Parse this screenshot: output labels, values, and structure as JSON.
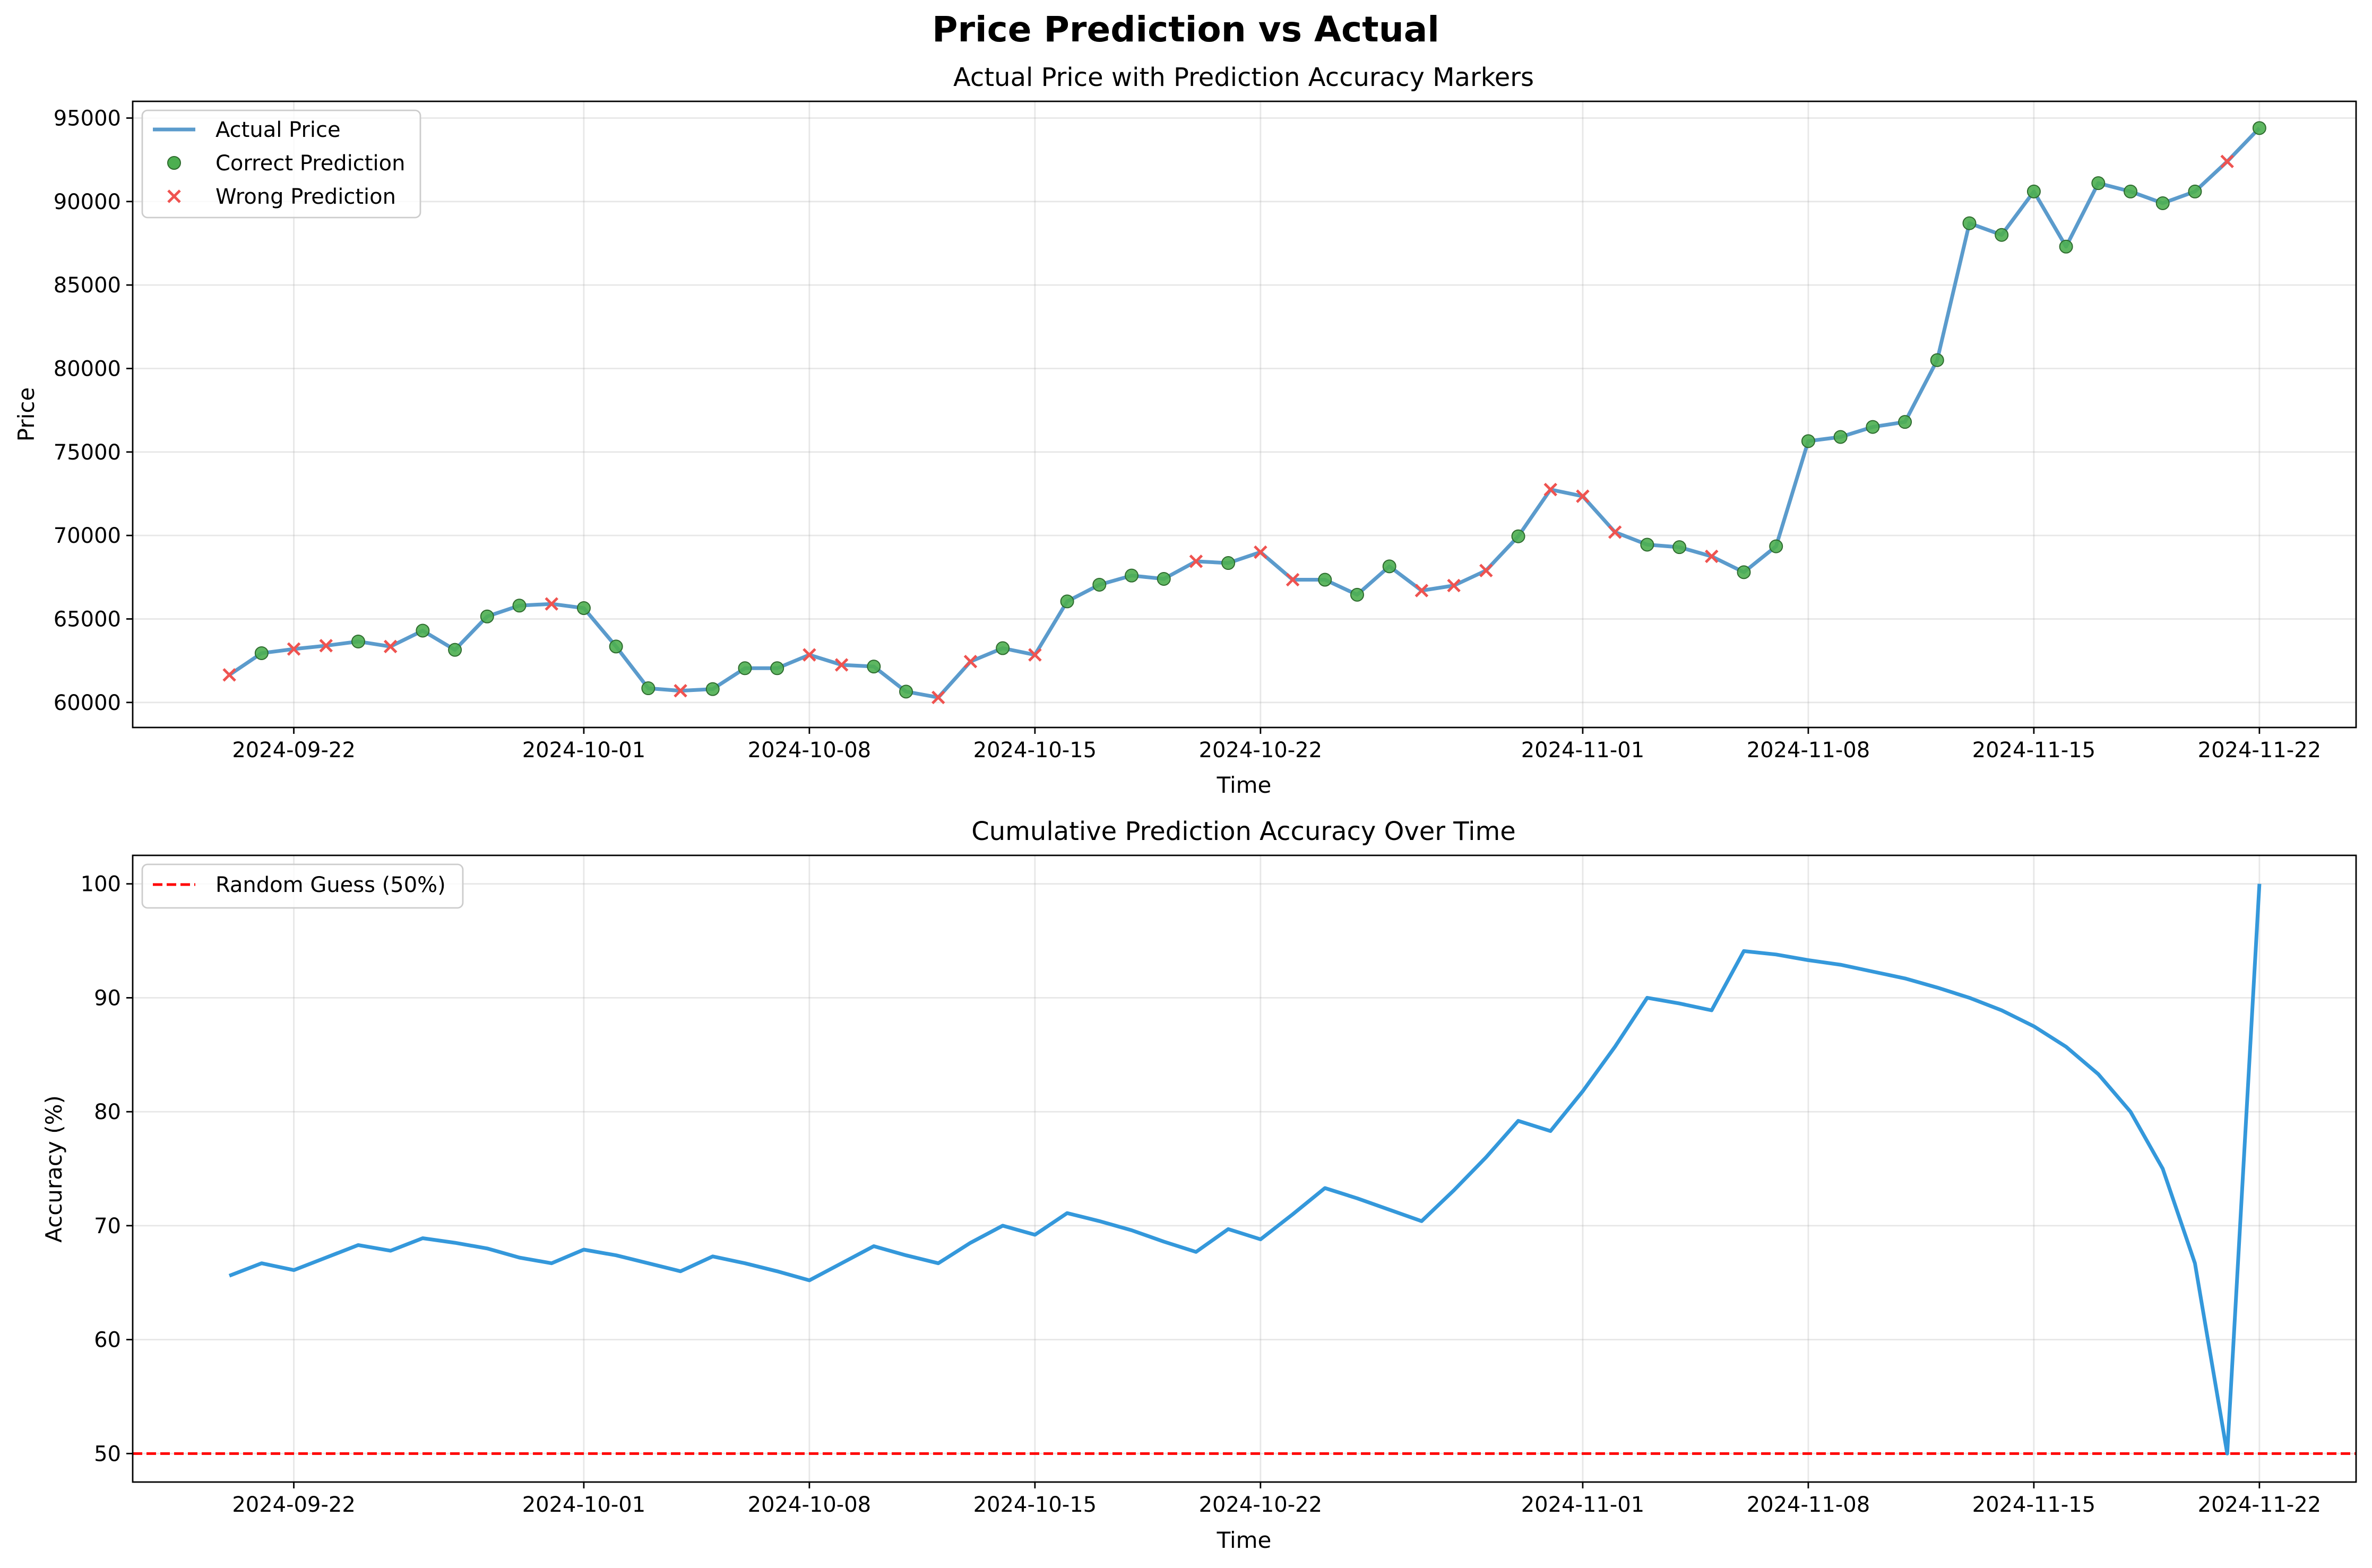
{
  "figure": {
    "suptitle": "Price Prediction vs Actual"
  },
  "chart_data": [
    {
      "type": "line",
      "title": "Actual Price with Prediction Accuracy Markers",
      "xlabel": "Time",
      "ylabel": "Price",
      "x_ticks": [
        "2024-09-22",
        "2024-10-01",
        "2024-10-08",
        "2024-10-15",
        "2024-10-22",
        "2024-11-01",
        "2024-11-08",
        "2024-11-15",
        "2024-11-22"
      ],
      "y_ticks": [
        60000,
        65000,
        70000,
        75000,
        80000,
        85000,
        90000,
        95000
      ],
      "ylim": [
        58500,
        96000
      ],
      "xlim": [
        "2024-09-17",
        "2024-11-25"
      ],
      "grid": true,
      "legend_position": "top-left",
      "legend": [
        "Actual Price",
        "Correct Prediction",
        "Wrong Prediction"
      ],
      "colors": {
        "actual": "#5b9bcc",
        "correct": "#4caf50",
        "correct_edge": "#2e6b2e",
        "wrong": "#ef5350"
      },
      "dates": [
        "2024-09-20",
        "2024-09-21",
        "2024-09-22",
        "2024-09-23",
        "2024-09-24",
        "2024-09-25",
        "2024-09-26",
        "2024-09-27",
        "2024-09-28",
        "2024-09-29",
        "2024-09-30",
        "2024-10-01",
        "2024-10-02",
        "2024-10-03",
        "2024-10-04",
        "2024-10-05",
        "2024-10-06",
        "2024-10-07",
        "2024-10-08",
        "2024-10-09",
        "2024-10-10",
        "2024-10-11",
        "2024-10-12",
        "2024-10-13",
        "2024-10-14",
        "2024-10-15",
        "2024-10-16",
        "2024-10-17",
        "2024-10-18",
        "2024-10-19",
        "2024-10-20",
        "2024-10-21",
        "2024-10-22",
        "2024-10-23",
        "2024-10-24",
        "2024-10-25",
        "2024-10-26",
        "2024-10-27",
        "2024-10-28",
        "2024-10-29",
        "2024-10-30",
        "2024-10-31",
        "2024-11-01",
        "2024-11-02",
        "2024-11-03",
        "2024-11-04",
        "2024-11-05",
        "2024-11-06",
        "2024-11-07",
        "2024-11-08",
        "2024-11-09",
        "2024-11-10",
        "2024-11-11",
        "2024-11-12",
        "2024-11-13",
        "2024-11-14",
        "2024-11-15",
        "2024-11-16",
        "2024-11-17",
        "2024-11-18",
        "2024-11-19",
        "2024-11-20",
        "2024-11-21",
        "2024-11-22"
      ],
      "price": [
        61650,
        62950,
        63200,
        63400,
        63650,
        63350,
        64300,
        63150,
        65150,
        65800,
        65900,
        65650,
        63350,
        60850,
        60700,
        60800,
        62050,
        62050,
        62850,
        62250,
        62150,
        60650,
        60300,
        62450,
        63250,
        62850,
        66050,
        67050,
        67600,
        67400,
        68450,
        68350,
        69000,
        67350,
        67350,
        66450,
        68150,
        66700,
        67000,
        67900,
        69950,
        72750,
        72350,
        70200,
        69450,
        69300,
        68750,
        67800,
        69350,
        75650,
        75900,
        76500,
        76800,
        80500,
        88700,
        88000,
        90600,
        87300,
        91100,
        90600,
        89900,
        90600,
        92400,
        94400
      ],
      "prediction": [
        "W",
        "C",
        "W",
        "W",
        "C",
        "W",
        "C",
        "C",
        "C",
        "C",
        "W",
        "C",
        "C",
        "C",
        "W",
        "C",
        "C",
        "C",
        "W",
        "W",
        "C",
        "C",
        "W",
        "W",
        "C",
        "W",
        "C",
        "C",
        "C",
        "C",
        "W",
        "C",
        "W",
        "W",
        "C",
        "C",
        "C",
        "W",
        "W",
        "W",
        "C",
        "W",
        "W",
        "W",
        "C",
        "C",
        "W",
        "C",
        "C",
        "C",
        "C",
        "C",
        "C",
        "C",
        "C",
        "C",
        "C",
        "C",
        "C",
        "C",
        "C",
        "C",
        "W",
        "C"
      ]
    },
    {
      "type": "line",
      "title": "Cumulative Prediction Accuracy Over Time",
      "xlabel": "Time",
      "ylabel": "Accuracy (%)",
      "x_ticks": [
        "2024-09-22",
        "2024-10-01",
        "2024-10-08",
        "2024-10-15",
        "2024-10-22",
        "2024-11-01",
        "2024-11-08",
        "2024-11-15",
        "2024-11-22"
      ],
      "y_ticks": [
        50,
        60,
        70,
        80,
        90,
        100
      ],
      "ylim": [
        47.5,
        102.5
      ],
      "xlim": [
        "2024-09-17",
        "2024-11-25"
      ],
      "grid": true,
      "legend_position": "top-left",
      "legend": [
        "Random Guess (50%)"
      ],
      "reference_line": {
        "y": 50,
        "color": "#ff0000",
        "style": "dashed"
      },
      "colors": {
        "accuracy": "#3498db"
      },
      "dates": [
        "2024-09-20",
        "2024-09-21",
        "2024-09-22",
        "2024-09-23",
        "2024-09-24",
        "2024-09-25",
        "2024-09-26",
        "2024-09-27",
        "2024-09-28",
        "2024-09-29",
        "2024-09-30",
        "2024-10-01",
        "2024-10-02",
        "2024-10-03",
        "2024-10-04",
        "2024-10-05",
        "2024-10-06",
        "2024-10-07",
        "2024-10-08",
        "2024-10-09",
        "2024-10-10",
        "2024-10-11",
        "2024-10-12",
        "2024-10-13",
        "2024-10-14",
        "2024-10-15",
        "2024-10-16",
        "2024-10-17",
        "2024-10-18",
        "2024-10-19",
        "2024-10-20",
        "2024-10-21",
        "2024-10-22",
        "2024-10-23",
        "2024-10-24",
        "2024-10-25",
        "2024-10-26",
        "2024-10-27",
        "2024-10-28",
        "2024-10-29",
        "2024-10-30",
        "2024-10-31",
        "2024-11-01",
        "2024-11-02",
        "2024-11-03",
        "2024-11-04",
        "2024-11-05",
        "2024-11-06",
        "2024-11-07",
        "2024-11-08",
        "2024-11-09",
        "2024-11-10",
        "2024-11-11",
        "2024-11-12",
        "2024-11-13",
        "2024-11-14",
        "2024-11-15",
        "2024-11-16",
        "2024-11-17",
        "2024-11-18",
        "2024-11-19",
        "2024-11-20",
        "2024-11-21",
        "2024-11-22"
      ],
      "accuracy": [
        65.6,
        66.7,
        66.1,
        67.2,
        68.3,
        67.8,
        68.9,
        68.5,
        68.0,
        67.2,
        66.7,
        67.9,
        67.4,
        66.7,
        66.0,
        67.3,
        66.7,
        66.0,
        65.2,
        66.7,
        68.2,
        67.4,
        66.7,
        68.5,
        70.0,
        69.2,
        71.1,
        70.4,
        69.6,
        68.6,
        67.7,
        69.7,
        68.8,
        71.0,
        73.3,
        72.4,
        71.4,
        70.4,
        73.1,
        76.0,
        79.2,
        78.3,
        81.8,
        85.7,
        90.0,
        89.5,
        88.9,
        94.1,
        93.8,
        93.3,
        92.9,
        92.3,
        91.7,
        90.9,
        90.0,
        88.9,
        87.5,
        85.7,
        83.3,
        80.0,
        75.0,
        66.7,
        50.0,
        100.0
      ]
    }
  ]
}
